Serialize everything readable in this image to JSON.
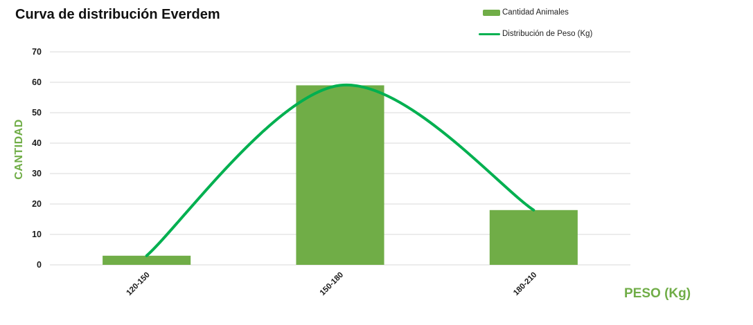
{
  "chart_data": {
    "type": "combo",
    "title": "Curva de distribución Everdem",
    "categories": [
      "120-150",
      "150-180",
      "180-210"
    ],
    "series": [
      {
        "name": "Cantidad Animales",
        "type": "bar",
        "values": [
          3,
          59,
          18
        ],
        "color": "#70AD47"
      },
      {
        "name": "Distribución de Peso (Kg)",
        "type": "line",
        "smooth": true,
        "values": [
          3,
          59,
          18
        ],
        "color": "#00B050"
      }
    ],
    "xlabel": "PESO (Kg)",
    "ylabel": "CANTIDAD",
    "ylim": [
      0,
      70
    ],
    "ytick_step": 10,
    "yticks": [
      0,
      10,
      20,
      30,
      40,
      50,
      60,
      70
    ],
    "grid": true,
    "gridline_color": "#D9D9D9",
    "axis_title_color": "#70AD47",
    "tick_label_color": "#1a1a1a",
    "legend_position": "top-right"
  }
}
